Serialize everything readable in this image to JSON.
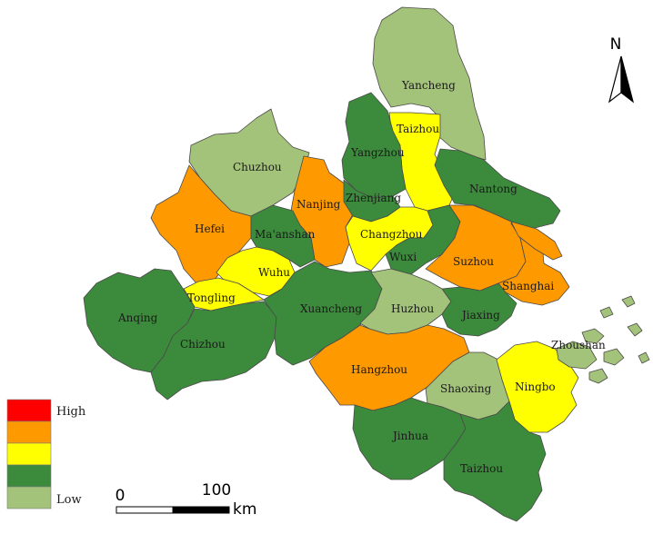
{
  "colors": {
    "high": "#ff0000",
    "mid_high": "#ff9900",
    "mid": "#ffff00",
    "mid_low": "#3c8a3c",
    "low": "#a3c27a",
    "sea_island": "#a3c27a"
  },
  "legend": {
    "high_label": "High",
    "low_label": "Low",
    "classes": [
      "high",
      "mid_high",
      "mid",
      "mid_low",
      "low"
    ]
  },
  "scale_bar": {
    "start": "0",
    "end": "100",
    "unit": "km"
  },
  "north_arrow": {
    "label": "N"
  },
  "cities": [
    {
      "id": "yancheng",
      "name": "Yancheng",
      "level": "low"
    },
    {
      "id": "taizhou-js",
      "name": "Taizhou",
      "level": "mid"
    },
    {
      "id": "yangzhou",
      "name": "Yangzhou",
      "level": "mid_low"
    },
    {
      "id": "chuzhou",
      "name": "Chuzhou",
      "level": "low"
    },
    {
      "id": "nantong",
      "name": "Nantong",
      "level": "mid_low"
    },
    {
      "id": "nanjing",
      "name": "Nanjing",
      "level": "mid_high"
    },
    {
      "id": "zhenjiang",
      "name": "Zhenjiang",
      "level": "mid_low"
    },
    {
      "id": "hefei",
      "name": "Hefei",
      "level": "mid_high"
    },
    {
      "id": "maanshan",
      "name": "Ma'anshan",
      "level": "mid_low"
    },
    {
      "id": "changzhou",
      "name": "Changzhou",
      "level": "mid"
    },
    {
      "id": "wuxi",
      "name": "Wuxi",
      "level": "mid_low"
    },
    {
      "id": "suzhou",
      "name": "Suzhou",
      "level": "mid_high"
    },
    {
      "id": "shanghai",
      "name": "Shanghai",
      "level": "mid_high"
    },
    {
      "id": "wuhu",
      "name": "Wuhu",
      "level": "mid"
    },
    {
      "id": "tongling",
      "name": "Tongling",
      "level": "mid"
    },
    {
      "id": "anqing",
      "name": "Anqing",
      "level": "mid_low"
    },
    {
      "id": "xuancheng",
      "name": "Xuancheng",
      "level": "mid_low"
    },
    {
      "id": "huzhou",
      "name": "Huzhou",
      "level": "low"
    },
    {
      "id": "jiaxing",
      "name": "Jiaxing",
      "level": "mid_low"
    },
    {
      "id": "chizhou",
      "name": "Chizhou",
      "level": "mid_low"
    },
    {
      "id": "zhoushan",
      "name": "Zhoushan",
      "level": "low"
    },
    {
      "id": "hangzhou",
      "name": "Hangzhou",
      "level": "mid_high"
    },
    {
      "id": "shaoxing",
      "name": "Shaoxing",
      "level": "low"
    },
    {
      "id": "ningbo",
      "name": "Ningbo",
      "level": "mid"
    },
    {
      "id": "jinhua",
      "name": "Jinhua",
      "level": "mid_low"
    },
    {
      "id": "taizhou-zj",
      "name": "Taizhou",
      "level": "mid_low"
    }
  ]
}
